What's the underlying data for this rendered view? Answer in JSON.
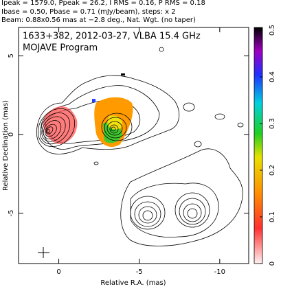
{
  "chart_data": {
    "type": "contour-map",
    "header": [
      "Ipeak = 1579.0, Ppeak = 26.2, I RMS = 0.16, P RMS = 0.18",
      "Ibase = 0.50, Pbase = 0.71 (mJy/beam), steps: x 2",
      "Beam: 0.88x0.56 mas at −2.8 deg., Nat. Wgt. (no taper)"
    ],
    "title": "1633+382, 2012-03-27, VLBA 15.4 GHz",
    "subtitle": "MOJAVE Program",
    "x_label": "Relative R.A. (mas)",
    "y_label": "Relative Declination (mas)",
    "xlim": [
      2.5,
      -11.8
    ],
    "xticks": [
      0,
      -5,
      -10
    ],
    "ylim": [
      -8.2,
      6.8
    ],
    "yticks": [
      -5,
      0,
      5
    ],
    "colorbar": {
      "lim": [
        0,
        0.5
      ],
      "ticks": [
        0,
        0.1,
        0.2,
        0.3,
        0.4,
        0.5
      ]
    }
  }
}
